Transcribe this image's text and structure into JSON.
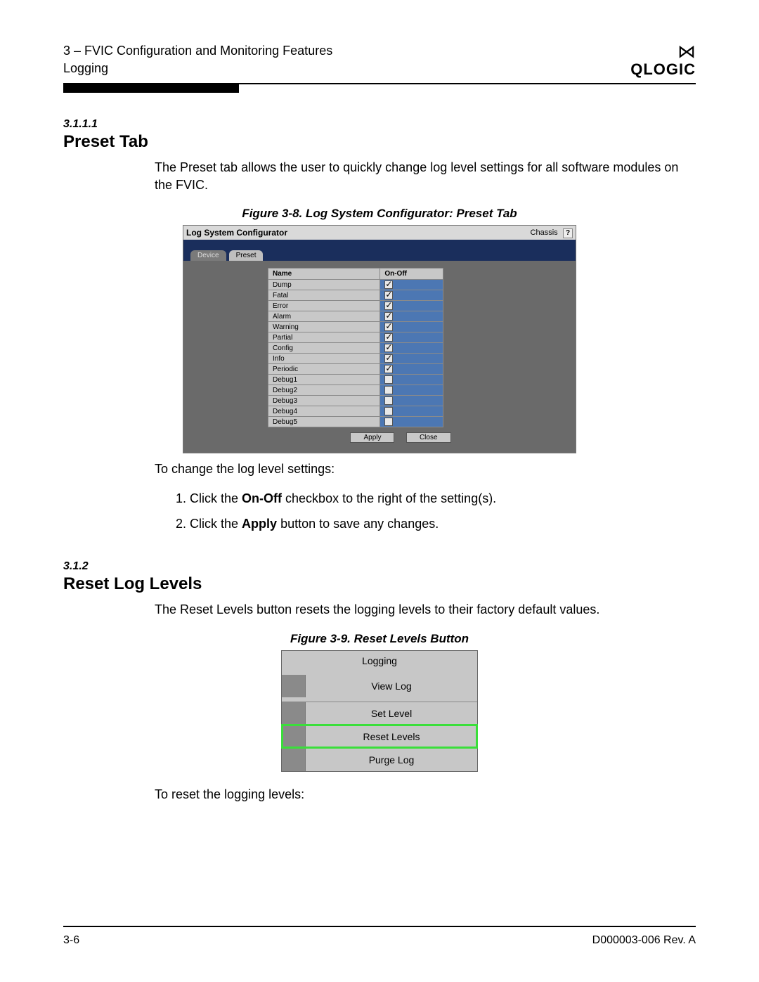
{
  "header": {
    "chapter_line": "3 – FVIC Configuration and Monitoring Features",
    "sub_line": "Logging",
    "logo_text": "QLOGIC"
  },
  "section1": {
    "num": "3.1.1.1",
    "title": "Preset Tab",
    "para": "The Preset tab allows the user to quickly change log level settings for all software modules on the FVIC."
  },
  "fig8": {
    "caption": "Figure 3-8. Log System Configurator: Preset Tab",
    "window_title": "Log System Configurator",
    "chassis_label": "Chassis",
    "help_label": "?",
    "tab_inactive": "Device",
    "tab_active": "Preset",
    "col_name": "Name",
    "col_onoff": "On-Off",
    "rows": [
      {
        "name": "Dump",
        "checked": true
      },
      {
        "name": "Fatal",
        "checked": true
      },
      {
        "name": "Error",
        "checked": true
      },
      {
        "name": "Alarm",
        "checked": true
      },
      {
        "name": "Warning",
        "checked": true
      },
      {
        "name": "Partial",
        "checked": true
      },
      {
        "name": "Config",
        "checked": true
      },
      {
        "name": "Info",
        "checked": true
      },
      {
        "name": "Periodic",
        "checked": true
      },
      {
        "name": "Debug1",
        "checked": false
      },
      {
        "name": "Debug2",
        "checked": false
      },
      {
        "name": "Debug3",
        "checked": false
      },
      {
        "name": "Debug4",
        "checked": false
      },
      {
        "name": "Debug5",
        "checked": false
      }
    ],
    "btn_apply": "Apply",
    "btn_close": "Close"
  },
  "instr1": {
    "lead": "To change the log level settings:",
    "step1_pre": "1.  Click the ",
    "step1_bold": "On-Off",
    "step1_post": " checkbox to the right of the setting(s).",
    "step2_pre": "2.  Click the ",
    "step2_bold": "Apply",
    "step2_post": " button to save any changes."
  },
  "section2": {
    "num": "3.1.2",
    "title": "Reset Log Levels",
    "para": "The Reset Levels button resets the logging levels to their factory default values."
  },
  "fig9": {
    "caption": "Figure 3-9. Reset Levels Button",
    "header": "Logging",
    "items": [
      "View Log",
      "Set Level",
      "Reset Levels",
      "Purge Log"
    ],
    "highlight_index": 2
  },
  "instr2": {
    "lead": "To reset the logging levels:"
  },
  "footer": {
    "left": "3-6",
    "right": "D000003-006 Rev. A"
  }
}
